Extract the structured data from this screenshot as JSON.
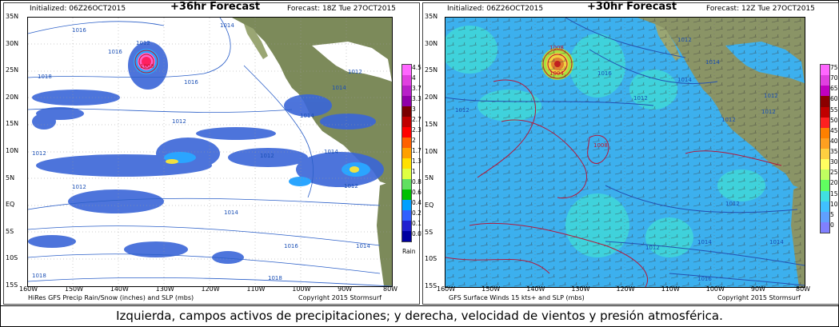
{
  "left_panel": {
    "initialized": "Initialized: 06Z26OCT2015",
    "title": "+36hr Forecast",
    "forecast": "Forecast: 18Z Tue 27OCT2015",
    "footer_left": "HiRes GFS Precip Rain/Snow (inches) and SLP (mbs)",
    "footer_right": "Copyright 2015 Stormsurf",
    "lat_labels": [
      "35N",
      "30N",
      "25N",
      "20N",
      "15N",
      "10N",
      "5N",
      "EQ",
      "5S",
      "10S",
      "15S"
    ],
    "lon_labels": [
      "160W",
      "150W",
      "140W",
      "130W",
      "120W",
      "110W",
      "100W",
      "90W",
      "80W"
    ],
    "isobar_labels": [
      "1016",
      "1012",
      "1008",
      "1018",
      "1014",
      "1016",
      "1014",
      "1012",
      "1014",
      "1012",
      "1012",
      "1012",
      "1014",
      "1012",
      "1016",
      "1014",
      "1016",
      "1018",
      "1012",
      "1014",
      "1018"
    ],
    "legend_values": [
      "4.5",
      "4",
      "3.7",
      "3.3",
      "3",
      "2.7",
      "2.3",
      "2",
      "1.7",
      "1.3",
      "1",
      "0.8",
      "0.6",
      "0.4",
      "0.2",
      "0.1",
      "0.01"
    ],
    "legend_unit": "Rain",
    "legend_colors": [
      "#ff66ff",
      "#e040e0",
      "#b820c8",
      "#9000a8",
      "#7a0000",
      "#c00000",
      "#ff0000",
      "#ff6000",
      "#ffa000",
      "#ffe000",
      "#e0ff40",
      "#60e060",
      "#00c000",
      "#00a0ff",
      "#3060ff",
      "#2020d0",
      "#0000a0"
    ]
  },
  "right_panel": {
    "initialized": "Initialized: 06Z26OCT2015",
    "title": "+30hr Forecast",
    "forecast": "Forecast: 12Z Tue 27OCT2015",
    "footer_left": "GFS Surface Winds 15 kts+ and SLP (mbs)",
    "footer_right": "Copyright 2015 Stormsurf",
    "lat_labels": [
      "35N",
      "30N",
      "25N",
      "20N",
      "15N",
      "10N",
      "5N",
      "EQ",
      "5S",
      "10S",
      "15S"
    ],
    "lon_labels": [
      "160W",
      "150W",
      "140W",
      "130W",
      "120W",
      "110W",
      "100W",
      "90W",
      "80W"
    ],
    "isobar_labels": [
      "1008",
      "1004",
      "1012",
      "1014",
      "1016",
      "1008",
      "1012",
      "1012",
      "1012",
      "1014",
      "1012",
      "1012",
      "1012",
      "1012",
      "1014",
      "1014",
      "1016"
    ],
    "legend_values": [
      "75",
      "70",
      "65",
      "60",
      "55",
      "50",
      "45",
      "40",
      "35",
      "30",
      "25",
      "20",
      "15",
      "10",
      "5",
      "0"
    ],
    "legend_colors": [
      "#ff66ff",
      "#e040e0",
      "#c000c0",
      "#8b0000",
      "#c00000",
      "#ff2020",
      "#ff8000",
      "#ffa020",
      "#ffd040",
      "#ffff60",
      "#c0ff60",
      "#60ff60",
      "#40e0e0",
      "#40c0ff",
      "#60a0ff",
      "#8080ff"
    ]
  },
  "caption": "Izquierda, campos activos de precipitaciones; y derecha, velocidad de vientos y presión atmosférica."
}
